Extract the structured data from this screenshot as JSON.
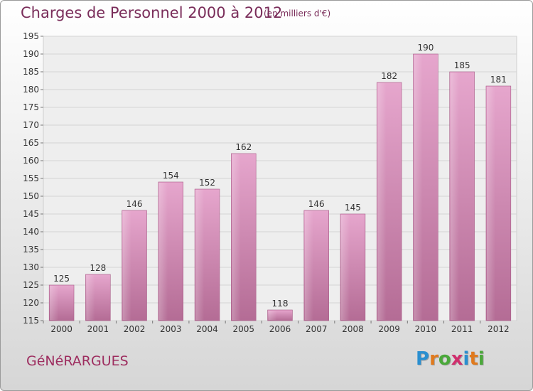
{
  "header": {
    "title": "Charges de Personnel 2000 à 2012",
    "subtitle": "(en milliers d'€)"
  },
  "footer": {
    "commune": "GéNéRARGUES",
    "logo_letters": [
      "P",
      "r",
      "o",
      "x",
      "i",
      "t",
      "i"
    ],
    "logo_colors": [
      "#2a8fd0",
      "#e07a1e",
      "#4aa83a",
      "#d02f6e",
      "#2a8fd0",
      "#e07a1e",
      "#4aa83a"
    ]
  },
  "chart_data": {
    "type": "bar",
    "title": "Charges de Personnel 2000 à 2012",
    "subtitle": "(en milliers d'€)",
    "categories": [
      "2000",
      "2001",
      "2002",
      "2003",
      "2004",
      "2005",
      "2006",
      "2007",
      "2008",
      "2009",
      "2010",
      "2011",
      "2012"
    ],
    "values": [
      125,
      128,
      146,
      154,
      152,
      162,
      118,
      146,
      145,
      182,
      190,
      185,
      181
    ],
    "ylim": [
      115,
      195
    ],
    "yticks": [
      115,
      120,
      125,
      130,
      135,
      140,
      145,
      150,
      155,
      160,
      165,
      170,
      175,
      180,
      185,
      190,
      195
    ],
    "grid": true,
    "bar_color": "#c77da6",
    "xlabel": "",
    "ylabel": ""
  }
}
